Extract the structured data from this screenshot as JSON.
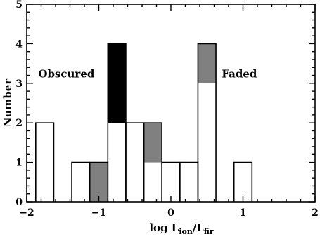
{
  "chart_data": {
    "type": "bar",
    "stacked": true,
    "xlabel": "log L",
    "xlabel_sub1": "ion",
    "xlabel_sep": "/L",
    "xlabel_sub2": "fir",
    "ylabel": "Number",
    "xlim": [
      -2,
      2
    ],
    "ylim": [
      0,
      5
    ],
    "xticks": [
      "−2",
      "−1",
      "0",
      "1",
      "2"
    ],
    "xtick_values": [
      -2,
      -1,
      0,
      1,
      2
    ],
    "yticks": [
      "0",
      "1",
      "2",
      "3",
      "4",
      "5"
    ],
    "ytick_values": [
      0,
      1,
      2,
      3,
      4,
      5
    ],
    "bin_edges": [
      -1.875,
      -1.625,
      -1.375,
      -1.125,
      -0.875,
      -0.625,
      -0.375,
      -0.125,
      0.125,
      0.375,
      0.625,
      0.875,
      1.125
    ],
    "series": [
      {
        "fill": "#ffffff",
        "values": [
          2,
          0,
          1,
          0,
          2,
          2,
          1,
          1,
          1,
          3,
          0,
          1
        ]
      },
      {
        "fill": "#808080",
        "values": [
          0,
          0,
          0,
          1,
          0,
          0,
          1,
          0,
          0,
          1,
          0,
          0
        ]
      },
      {
        "fill": "#000000",
        "values": [
          0,
          0,
          0,
          0,
          2,
          0,
          0,
          0,
          0,
          0,
          0,
          0
        ]
      }
    ],
    "annotations": [
      {
        "text": "Obscured",
        "x": -1.45,
        "y": 3.15
      },
      {
        "text": "Faded",
        "x": 0.95,
        "y": 3.15
      }
    ],
    "grid": false
  }
}
